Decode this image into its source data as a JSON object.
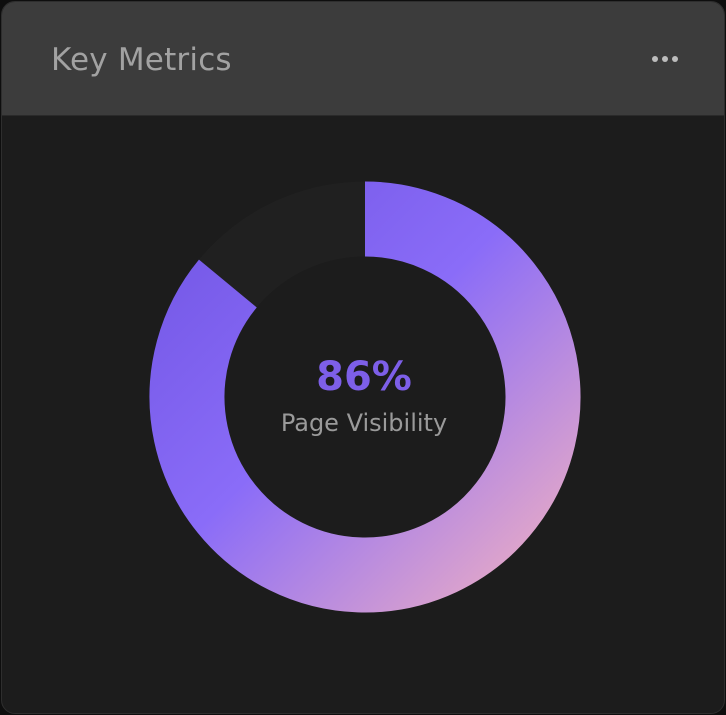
{
  "card": {
    "title": "Key Metrics",
    "menu_icon": "more-horizontal-icon"
  },
  "metric": {
    "value_text": "86%",
    "label": "Page Visibility",
    "fraction": 0.86
  },
  "colors": {
    "gradient_start": "#7458e6",
    "gradient_mid": "#8a6cf8",
    "gradient_end": "#e8abc6",
    "value_text": "#7d5fe8"
  }
}
